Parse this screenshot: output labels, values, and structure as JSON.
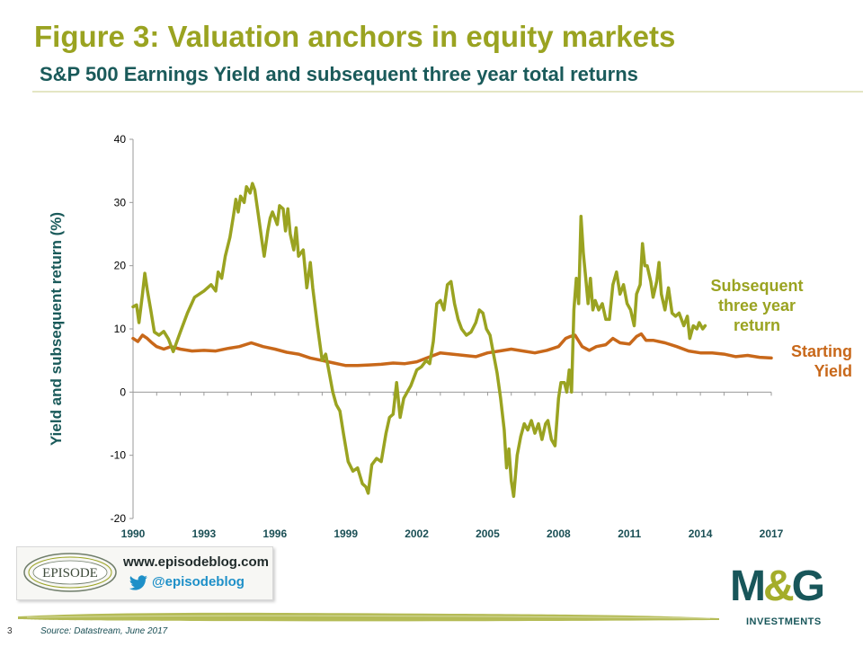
{
  "header": {
    "title": "Figure 3: Valuation anchors in equity markets",
    "subtitle": "S&P 500 Earnings Yield and subsequent three year total returns"
  },
  "colors": {
    "return_series": "#9aa321",
    "yield_series": "#c8681a",
    "title": "#9aa321",
    "subtitle": "#1a5a5a",
    "brand_teal": "#18565a",
    "twitter_blue": "#1e90c8"
  },
  "promo": {
    "logo_text": "EPISODE",
    "url": "www.episodeblog.com",
    "handle": "@episodeblog",
    "icon": "twitter-icon"
  },
  "brand": {
    "logo": "M&G",
    "tagline": "INVESTMENTS"
  },
  "footer": {
    "page_number": "3",
    "source": "Source: Datastream, June 2017"
  },
  "chart_data": {
    "type": "line",
    "title": "",
    "xlabel": "",
    "ylabel": "Yield and subsequent return (%)",
    "ylim": [
      -20,
      40
    ],
    "yticks": [
      "40",
      "30",
      "20",
      "10",
      "0",
      "-10",
      "-20"
    ],
    "yticks_values": [
      40,
      30,
      20,
      10,
      0,
      -10,
      -20
    ],
    "xlim": [
      1990,
      2017
    ],
    "xticks": [
      "1990",
      "1993",
      "1996",
      "1999",
      "2002",
      "2005",
      "2008",
      "2011",
      "2014",
      "2017"
    ],
    "xticks_values": [
      1990,
      1993,
      1996,
      1999,
      2002,
      2005,
      2008,
      2011,
      2014,
      2017
    ],
    "grid": false,
    "legend": "inline labels at right end of each series",
    "series": [
      {
        "name": "Subsequent three year return",
        "label_lines": [
          "Subsequent",
          "three year",
          "return"
        ],
        "color": "#9aa321",
        "points": [
          [
            1990.0,
            13.5
          ],
          [
            1990.15,
            13.8
          ],
          [
            1990.25,
            11.0
          ],
          [
            1990.4,
            15.5
          ],
          [
            1990.5,
            18.8
          ],
          [
            1990.6,
            16.2
          ],
          [
            1990.75,
            13.0
          ],
          [
            1990.9,
            9.5
          ],
          [
            1991.1,
            9.0
          ],
          [
            1991.3,
            9.6
          ],
          [
            1991.5,
            8.4
          ],
          [
            1991.7,
            6.4
          ],
          [
            1992.0,
            9.5
          ],
          [
            1992.3,
            12.5
          ],
          [
            1992.6,
            15.0
          ],
          [
            1993.0,
            16.0
          ],
          [
            1993.3,
            17.0
          ],
          [
            1993.5,
            16.0
          ],
          [
            1993.6,
            19.0
          ],
          [
            1993.75,
            18.0
          ],
          [
            1993.9,
            21.5
          ],
          [
            1994.1,
            24.5
          ],
          [
            1994.25,
            28.0
          ],
          [
            1994.35,
            30.5
          ],
          [
            1994.45,
            28.5
          ],
          [
            1994.55,
            31.0
          ],
          [
            1994.7,
            30.0
          ],
          [
            1994.8,
            32.5
          ],
          [
            1994.95,
            31.5
          ],
          [
            1995.05,
            33.0
          ],
          [
            1995.15,
            32.0
          ],
          [
            1995.3,
            28.0
          ],
          [
            1995.45,
            24.0
          ],
          [
            1995.55,
            21.5
          ],
          [
            1995.7,
            25.5
          ],
          [
            1995.8,
            27.5
          ],
          [
            1995.9,
            28.5
          ],
          [
            1996.0,
            27.5
          ],
          [
            1996.1,
            26.5
          ],
          [
            1996.2,
            29.5
          ],
          [
            1996.35,
            29.0
          ],
          [
            1996.45,
            25.5
          ],
          [
            1996.55,
            29.0
          ],
          [
            1996.65,
            25.0
          ],
          [
            1996.8,
            22.5
          ],
          [
            1996.9,
            26.0
          ],
          [
            1997.0,
            21.5
          ],
          [
            1997.2,
            22.5
          ],
          [
            1997.35,
            16.5
          ],
          [
            1997.5,
            20.5
          ],
          [
            1997.6,
            16.5
          ],
          [
            1997.8,
            10.5
          ],
          [
            1998.0,
            5.0
          ],
          [
            1998.15,
            6.0
          ],
          [
            1998.3,
            3.0
          ],
          [
            1998.45,
            0.0
          ],
          [
            1998.6,
            -2.0
          ],
          [
            1998.75,
            -3.0
          ],
          [
            1998.9,
            -6.5
          ],
          [
            1999.1,
            -11.0
          ],
          [
            1999.3,
            -12.5
          ],
          [
            1999.5,
            -12.0
          ],
          [
            1999.7,
            -14.5
          ],
          [
            1999.85,
            -15.0
          ],
          [
            1999.95,
            -16.0
          ],
          [
            2000.1,
            -11.5
          ],
          [
            2000.3,
            -10.5
          ],
          [
            2000.5,
            -11.0
          ],
          [
            2000.7,
            -6.5
          ],
          [
            2000.85,
            -4.0
          ],
          [
            2001.0,
            -3.5
          ],
          [
            2001.15,
            1.5
          ],
          [
            2001.3,
            -4.0
          ],
          [
            2001.45,
            -1.0
          ],
          [
            2001.6,
            0.0
          ],
          [
            2001.75,
            1.0
          ],
          [
            2002.0,
            3.5
          ],
          [
            2002.2,
            4.0
          ],
          [
            2002.4,
            5.0
          ],
          [
            2002.55,
            4.5
          ],
          [
            2002.7,
            8.0
          ],
          [
            2002.85,
            14.0
          ],
          [
            2003.0,
            14.5
          ],
          [
            2003.15,
            13.0
          ],
          [
            2003.3,
            17.0
          ],
          [
            2003.45,
            17.5
          ],
          [
            2003.6,
            14.0
          ],
          [
            2003.75,
            11.5
          ],
          [
            2003.9,
            10.0
          ],
          [
            2004.1,
            9.0
          ],
          [
            2004.3,
            9.5
          ],
          [
            2004.5,
            11.0
          ],
          [
            2004.65,
            13.0
          ],
          [
            2004.8,
            12.5
          ],
          [
            2004.95,
            10.0
          ],
          [
            2005.1,
            9.0
          ],
          [
            2005.25,
            6.0
          ],
          [
            2005.4,
            3.0
          ],
          [
            2005.55,
            -1.0
          ],
          [
            2005.7,
            -6.0
          ],
          [
            2005.8,
            -12.0
          ],
          [
            2005.9,
            -9.0
          ],
          [
            2006.0,
            -14.0
          ],
          [
            2006.1,
            -16.5
          ],
          [
            2006.25,
            -10.0
          ],
          [
            2006.4,
            -7.0
          ],
          [
            2006.55,
            -5.0
          ],
          [
            2006.7,
            -6.0
          ],
          [
            2006.85,
            -4.5
          ],
          [
            2007.0,
            -6.5
          ],
          [
            2007.15,
            -5.0
          ],
          [
            2007.3,
            -7.5
          ],
          [
            2007.45,
            -5.0
          ],
          [
            2007.55,
            -4.5
          ],
          [
            2007.7,
            -7.5
          ],
          [
            2007.85,
            -8.5
          ],
          [
            2008.0,
            -1.0
          ],
          [
            2008.1,
            1.5
          ],
          [
            2008.25,
            1.5
          ],
          [
            2008.35,
            0.0
          ],
          [
            2008.45,
            3.5
          ],
          [
            2008.55,
            0.0
          ],
          [
            2008.65,
            13.0
          ],
          [
            2008.75,
            18.0
          ],
          [
            2008.85,
            14.0
          ],
          [
            2008.95,
            27.8
          ],
          [
            2009.05,
            22.0
          ],
          [
            2009.15,
            18.0
          ],
          [
            2009.25,
            14.0
          ],
          [
            2009.35,
            18.0
          ],
          [
            2009.45,
            13.0
          ],
          [
            2009.55,
            14.5
          ],
          [
            2009.7,
            13.0
          ],
          [
            2009.85,
            14.0
          ],
          [
            2010.0,
            11.5
          ],
          [
            2010.15,
            11.5
          ],
          [
            2010.3,
            17.0
          ],
          [
            2010.45,
            19.0
          ],
          [
            2010.6,
            15.5
          ],
          [
            2010.75,
            17.0
          ],
          [
            2010.9,
            14.0
          ],
          [
            2011.05,
            13.0
          ],
          [
            2011.2,
            10.5
          ],
          [
            2011.3,
            15.5
          ],
          [
            2011.45,
            17.0
          ],
          [
            2011.55,
            23.5
          ],
          [
            2011.65,
            20.0
          ],
          [
            2011.75,
            20.0
          ],
          [
            2011.9,
            17.5
          ],
          [
            2012.0,
            15.0
          ],
          [
            2012.15,
            17.5
          ],
          [
            2012.25,
            20.5
          ],
          [
            2012.35,
            15.5
          ],
          [
            2012.5,
            13.0
          ],
          [
            2012.65,
            16.5
          ],
          [
            2012.8,
            12.5
          ],
          [
            2012.95,
            12.0
          ],
          [
            2013.1,
            12.5
          ],
          [
            2013.3,
            10.5
          ],
          [
            2013.45,
            12.0
          ],
          [
            2013.55,
            8.5
          ],
          [
            2013.7,
            10.5
          ],
          [
            2013.85,
            10.0
          ],
          [
            2013.95,
            11.0
          ],
          [
            2014.1,
            10.0
          ],
          [
            2014.2,
            10.5
          ]
        ]
      },
      {
        "name": "Starting Yield",
        "label_lines": [
          "Starting",
          "Yield"
        ],
        "color": "#c8681a",
        "points": [
          [
            1990.0,
            8.5
          ],
          [
            1990.2,
            8.0
          ],
          [
            1990.4,
            9.0
          ],
          [
            1990.6,
            8.5
          ],
          [
            1990.8,
            7.8
          ],
          [
            1991.0,
            7.2
          ],
          [
            1991.3,
            6.8
          ],
          [
            1991.6,
            7.2
          ],
          [
            1992.0,
            6.8
          ],
          [
            1992.5,
            6.5
          ],
          [
            1993.0,
            6.6
          ],
          [
            1993.5,
            6.5
          ],
          [
            1994.0,
            6.9
          ],
          [
            1994.5,
            7.2
          ],
          [
            1995.0,
            7.8
          ],
          [
            1995.5,
            7.2
          ],
          [
            1996.0,
            6.8
          ],
          [
            1996.5,
            6.3
          ],
          [
            1997.0,
            6.0
          ],
          [
            1997.5,
            5.4
          ],
          [
            1998.0,
            5.0
          ],
          [
            1998.5,
            4.6
          ],
          [
            1999.0,
            4.2
          ],
          [
            1999.5,
            4.2
          ],
          [
            2000.0,
            4.3
          ],
          [
            2000.5,
            4.4
          ],
          [
            2001.0,
            4.6
          ],
          [
            2001.5,
            4.5
          ],
          [
            2002.0,
            4.8
          ],
          [
            2002.5,
            5.5
          ],
          [
            2003.0,
            6.2
          ],
          [
            2003.5,
            6.0
          ],
          [
            2004.0,
            5.8
          ],
          [
            2004.5,
            5.6
          ],
          [
            2005.0,
            6.2
          ],
          [
            2005.5,
            6.5
          ],
          [
            2006.0,
            6.8
          ],
          [
            2006.5,
            6.5
          ],
          [
            2007.0,
            6.2
          ],
          [
            2007.5,
            6.6
          ],
          [
            2008.0,
            7.2
          ],
          [
            2008.3,
            8.5
          ],
          [
            2008.5,
            8.8
          ],
          [
            2008.7,
            9.0
          ],
          [
            2009.0,
            7.2
          ],
          [
            2009.3,
            6.6
          ],
          [
            2009.6,
            7.2
          ],
          [
            2010.0,
            7.5
          ],
          [
            2010.3,
            8.5
          ],
          [
            2010.6,
            7.8
          ],
          [
            2011.0,
            7.6
          ],
          [
            2011.3,
            8.8
          ],
          [
            2011.5,
            9.2
          ],
          [
            2011.7,
            8.2
          ],
          [
            2012.0,
            8.2
          ],
          [
            2012.5,
            7.8
          ],
          [
            2013.0,
            7.2
          ],
          [
            2013.5,
            6.5
          ],
          [
            2014.0,
            6.2
          ],
          [
            2014.5,
            6.2
          ],
          [
            2015.0,
            6.0
          ],
          [
            2015.5,
            5.6
          ],
          [
            2016.0,
            5.8
          ],
          [
            2016.5,
            5.5
          ],
          [
            2017.0,
            5.4
          ]
        ]
      }
    ]
  }
}
